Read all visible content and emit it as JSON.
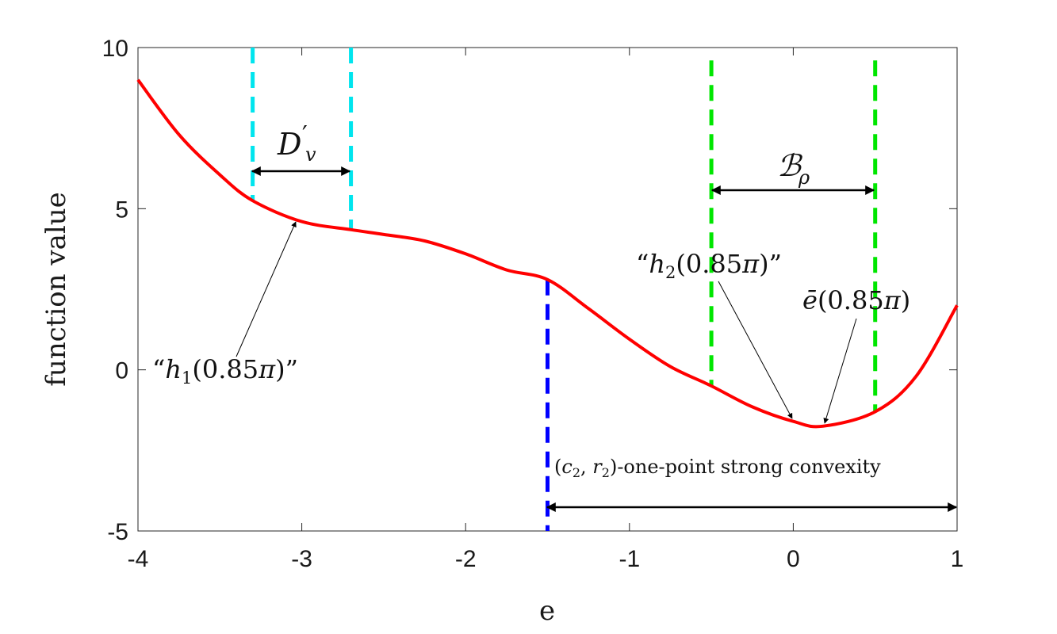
{
  "chart_data": {
    "type": "line",
    "title": "",
    "xlabel": "e",
    "ylabel": "function value",
    "xlim": [
      -4,
      1
    ],
    "ylim": [
      -5,
      10
    ],
    "x_ticks": [
      -4,
      -3,
      -2,
      -1,
      0,
      1
    ],
    "y_ticks": [
      -5,
      0,
      5,
      10
    ],
    "x_tick_labels": [
      "-4",
      "-3",
      "-2",
      "-1",
      "0",
      "1"
    ],
    "y_tick_labels": [
      "-5",
      "0",
      "5",
      "10"
    ],
    "grid": false,
    "series": [
      {
        "color": "#ff0000",
        "x": [
          -4.0,
          -3.75,
          -3.5,
          -3.3,
          -3.0,
          -2.7,
          -2.5,
          -2.25,
          -2.0,
          -1.75,
          -1.5,
          -1.25,
          -1.0,
          -0.75,
          -0.5,
          -0.25,
          0.0,
          0.18,
          0.5,
          0.75,
          1.0
        ],
        "y": [
          9.0,
          7.3,
          6.05,
          5.25,
          4.6,
          4.35,
          4.2,
          4.0,
          3.6,
          3.1,
          2.8,
          1.9,
          0.95,
          0.1,
          -0.5,
          -1.15,
          -1.6,
          -1.75,
          -1.3,
          -0.2,
          2.0
        ]
      }
    ],
    "vertical_lines": [
      {
        "x": -3.3,
        "y_from": 5.25,
        "y_to": 10,
        "color": "#00e5ee",
        "style": "dashed"
      },
      {
        "x": -2.7,
        "y_from": 4.35,
        "y_to": 10,
        "color": "#00e5ee",
        "style": "dashed"
      },
      {
        "x": -0.5,
        "y_from": -0.5,
        "y_to": 9.6,
        "color": "#00e600",
        "style": "dashed"
      },
      {
        "x": 0.5,
        "y_from": -1.3,
        "y_to": 9.6,
        "color": "#00e600",
        "style": "dashed"
      },
      {
        "x": -1.5,
        "y_from": -5,
        "y_to": 2.8,
        "color": "#0000ff",
        "style": "dashed"
      }
    ],
    "annotations": [
      {
        "label": "D′v",
        "type": "double-arrow",
        "x_from": -3.3,
        "x_to": -2.7,
        "y": 6.2
      },
      {
        "label": "ℬρ",
        "type": "double-arrow",
        "x_from": -0.5,
        "x_to": 0.5,
        "y": 5.6
      },
      {
        "label": "(c2, r2)-one-point strong convexity",
        "type": "double-arrow",
        "x_from": -1.5,
        "x_to": 1.0,
        "y": -4.2
      },
      {
        "label": "“h1(0.85π)”",
        "type": "arrow",
        "target_x": -3.05,
        "target_y": 4.65
      },
      {
        "label": "“h2(0.85π)”",
        "type": "arrow",
        "target_x": 0.0,
        "target_y": -1.6
      },
      {
        "label": "ē(0.85π)",
        "type": "arrow",
        "target_x": 0.2,
        "target_y": -1.7
      }
    ]
  }
}
